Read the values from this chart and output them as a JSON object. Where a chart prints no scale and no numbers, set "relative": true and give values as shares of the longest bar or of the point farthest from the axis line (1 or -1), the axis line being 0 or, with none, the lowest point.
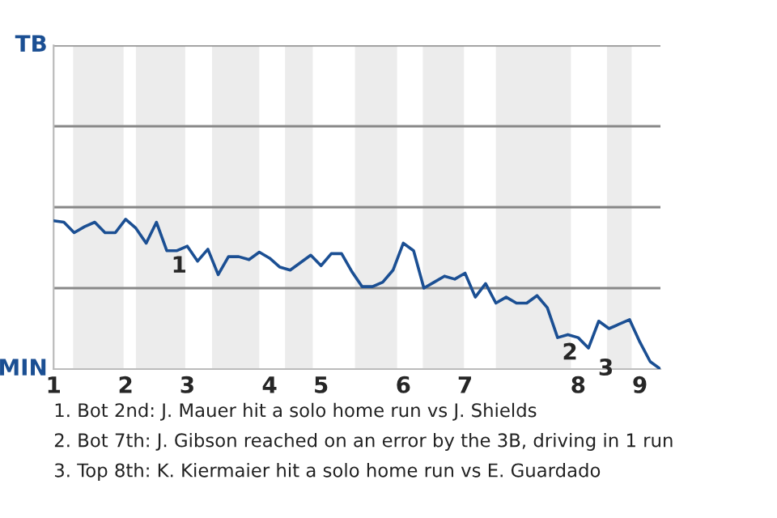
{
  "chart_data": {
    "type": "line",
    "relative": true,
    "categories": [
      "1",
      null,
      null,
      null,
      null,
      null,
      null,
      "2",
      null,
      null,
      null,
      null,
      null,
      "3",
      null,
      null,
      null,
      null,
      null,
      null,
      null,
      "4",
      null,
      null,
      null,
      null,
      "5",
      null,
      null,
      null,
      null,
      null,
      null,
      null,
      "6",
      null,
      null,
      null,
      null,
      null,
      "7",
      null,
      null,
      null,
      null,
      null,
      null,
      null,
      null,
      null,
      null,
      "8",
      null,
      null,
      null,
      null,
      null,
      "9",
      null,
      null
    ],
    "series": [
      {
        "color": "#1b4f93",
        "values": [
          0.99,
          0.98,
          0.91,
          0.95,
          0.98,
          0.91,
          0.91,
          1,
          0.94,
          0.84,
          0.98,
          0.79,
          0.79,
          0.82,
          0.72,
          0.8,
          0.63,
          0.75,
          0.75,
          0.73,
          0.78,
          0.74,
          0.68,
          0.66,
          0.71,
          0.76,
          0.69,
          0.77,
          0.77,
          0.65,
          0.55,
          0.55,
          0.58,
          0.66,
          0.84,
          0.79,
          0.54,
          0.58,
          0.62,
          0.6,
          0.64,
          0.48,
          0.57,
          0.44,
          0.48,
          0.44,
          0.44,
          0.49,
          0.41,
          0.21,
          0.23,
          0.21,
          0.14,
          0.32,
          0.27,
          0.3,
          0.33,
          0.18,
          0.05,
          0
        ]
      }
    ],
    "ref_lines": [
      {
        "axis": "y",
        "value": 0.54,
        "color": "#888888"
      },
      {
        "axis": "y",
        "value": 1.08,
        "color": "#888888"
      },
      {
        "axis": "y",
        "value": 1.62,
        "color": "#888888"
      },
      {
        "axis": "y",
        "value": 2.16,
        "color": "#888888"
      }
    ],
    "annotations": [
      "TB",
      "MIN",
      {
        "text": "1",
        "y": 0.79
      },
      {
        "text": "2",
        "y": 0.21
      },
      "3",
      "1. Bot 2nd: J. Mauer hit a solo home run vs J. Shields",
      "2. Bot 7th: J. Gibson reached on an error by the 3B, driving in 1 run",
      "3. Top 8th: K. Kiermaier hit a solo home run vs E. Guardado"
    ]
  }
}
